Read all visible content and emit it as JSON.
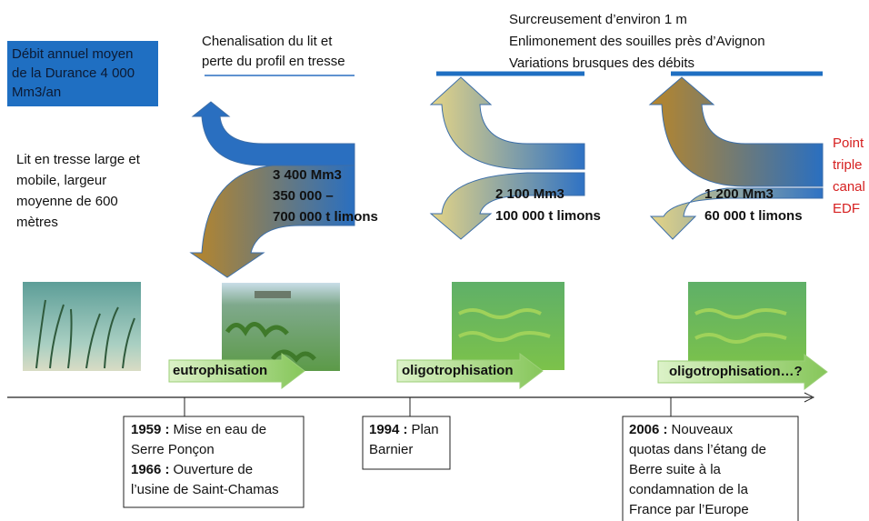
{
  "info_box": {
    "lines": [
      "Débit annuel moyen",
      "de la Durance 4 000",
      "Mm3/an"
    ]
  },
  "initial_state": {
    "lines": [
      "Lit en tresse large et",
      "mobile, largeur",
      "moyenne de 600",
      "mètres"
    ]
  },
  "stages": [
    {
      "title_lines": [
        "Chenalisation du lit et",
        "perte du profil en tresse"
      ],
      "flow_lines": [
        "3 400 Mm3",
        "350 000 –",
        "700 000 t limons"
      ],
      "process": "eutrophisation"
    },
    {
      "title_lines": [
        "Surcreusement d’environ 1 m",
        "Enlimonement des souilles près d’Avignon",
        "Variations brusques des débits"
      ],
      "flow_lines": [
        "2 100 Mm3",
        "100 000 t limons"
      ],
      "process": "oligotrophisation"
    },
    {
      "flow_lines": [
        "1 200 Mm3",
        "60 000 t limons"
      ],
      "process": "oligotrophisation…?",
      "side_note": [
        "Point",
        "triple",
        "canal",
        "EDF"
      ]
    }
  ],
  "events": [
    {
      "entries": [
        {
          "year": "1959 :",
          "lines": [
            "Mise en eau de",
            "Serre Ponçon"
          ]
        },
        {
          "year": "1966 :",
          "lines": [
            "Ouverture de",
            "l’usine de Saint-Chamas"
          ]
        }
      ]
    },
    {
      "entries": [
        {
          "year": "1994 :",
          "lines": [
            "Plan",
            "Barnier"
          ]
        }
      ]
    },
    {
      "entries": [
        {
          "year": "2006 :",
          "lines": [
            "Nouveaux",
            "quotas dans l’étang de",
            "Berre suite à la",
            "condamnation de la",
            "France par l’Europe"
          ]
        }
      ]
    }
  ]
}
